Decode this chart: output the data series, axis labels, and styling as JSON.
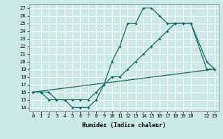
{
  "xlabel": "Humidex (Indice chaleur)",
  "bg_color": "#cce8e8",
  "grid_color": "#ffffff",
  "line_color": "#1a6666",
  "ylim": [
    13.5,
    27.5
  ],
  "xlim": [
    -0.5,
    23.5
  ],
  "yticks": [
    14,
    15,
    16,
    17,
    18,
    19,
    20,
    21,
    22,
    23,
    24,
    25,
    26,
    27
  ],
  "x_tick_positions": [
    0,
    1,
    2,
    3,
    4,
    5,
    6,
    7,
    8,
    9,
    10,
    11,
    12,
    13,
    14,
    15,
    16,
    17,
    18,
    19,
    20,
    22,
    23
  ],
  "x_tick_labels": [
    "0",
    "1",
    "2",
    "3",
    "4",
    "5",
    "6",
    "7",
    "8",
    "9",
    "10",
    "11",
    "12",
    "13",
    "14",
    "15",
    "16",
    "17",
    "18",
    "19",
    "20",
    "22",
    "23"
  ],
  "series1_x": [
    0,
    1,
    2,
    3,
    4,
    5,
    6,
    7,
    8,
    9,
    10,
    11,
    12,
    13,
    14,
    15,
    16,
    17,
    18,
    19,
    20,
    22,
    23
  ],
  "series1_y": [
    16,
    16,
    16,
    15,
    15,
    14,
    14,
    14,
    15,
    17,
    20,
    22,
    25,
    25,
    27,
    27,
    26,
    25,
    25,
    25,
    25,
    20,
    19
  ],
  "series2_x": [
    0,
    1,
    2,
    3,
    4,
    5,
    6,
    7,
    8,
    9,
    10,
    11,
    12,
    13,
    14,
    15,
    16,
    17,
    18,
    19,
    20,
    22,
    23
  ],
  "series2_y": [
    16,
    16,
    15,
    15,
    15,
    15,
    15,
    15,
    16,
    17,
    18,
    18,
    19,
    20,
    21,
    22,
    23,
    24,
    25,
    25,
    25,
    19,
    19
  ],
  "series3_x": [
    0,
    23
  ],
  "series3_y": [
    16,
    19
  ]
}
